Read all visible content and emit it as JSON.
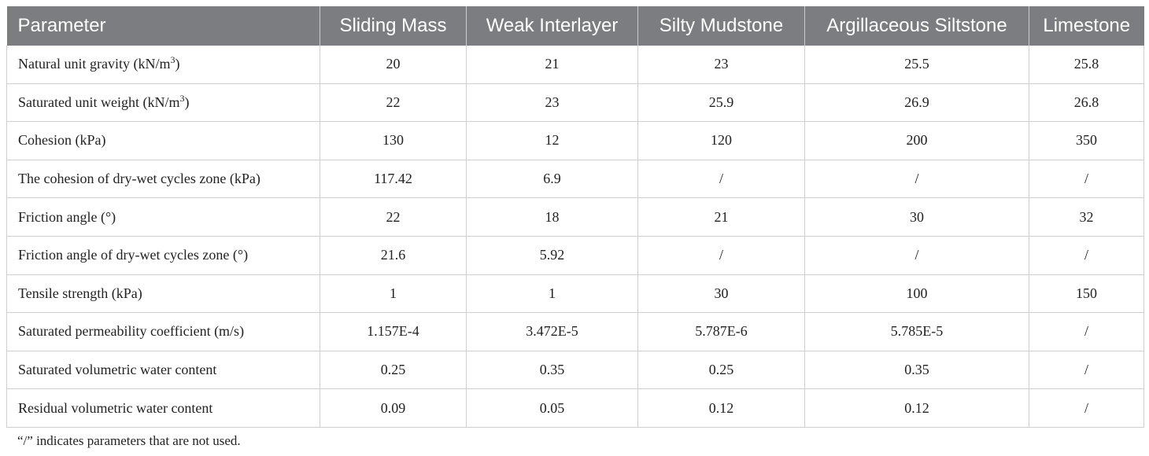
{
  "table": {
    "headers": [
      "Parameter",
      "Sliding Mass",
      "Weak Interlayer",
      "Silty Mudstone",
      "Argillaceous Siltstone",
      "Limestone"
    ],
    "rows": [
      {
        "label": "Natural unit gravity (kN/m",
        "sup": "3",
        "suffix": ")",
        "values": [
          "20",
          "21",
          "23",
          "25.5",
          "25.8"
        ]
      },
      {
        "label": "Saturated unit weight (kN/m",
        "sup": "3",
        "suffix": ")",
        "values": [
          "22",
          "23",
          "25.9",
          "26.9",
          "26.8"
        ]
      },
      {
        "label": "Cohesion (kPa)",
        "values": [
          "130",
          "12",
          "120",
          "200",
          "350"
        ]
      },
      {
        "label": "The cohesion of dry-wet cycles zone (kPa)",
        "values": [
          "117.42",
          "6.9",
          "/",
          "/",
          "/"
        ]
      },
      {
        "label": "Friction angle (°)",
        "values": [
          "22",
          "18",
          "21",
          "30",
          "32"
        ]
      },
      {
        "label": "Friction angle of dry-wet cycles zone (°)",
        "values": [
          "21.6",
          "5.92",
          "/",
          "/",
          "/"
        ]
      },
      {
        "label": "Tensile strength (kPa)",
        "values": [
          "1",
          "1",
          "30",
          "100",
          "150"
        ]
      },
      {
        "label": "Saturated permeability coefficient (m/s)",
        "values": [
          "1.157E-4",
          "3.472E-5",
          "5.787E-6",
          "5.785E-5",
          "/"
        ]
      },
      {
        "label": "Saturated volumetric water content",
        "values": [
          "0.25",
          "0.35",
          "0.25",
          "0.35",
          "/"
        ]
      },
      {
        "label": "Residual volumetric water content",
        "values": [
          "0.09",
          "0.05",
          "0.12",
          "0.12",
          "/"
        ]
      }
    ]
  },
  "footnote": "“/” indicates parameters that are not used."
}
